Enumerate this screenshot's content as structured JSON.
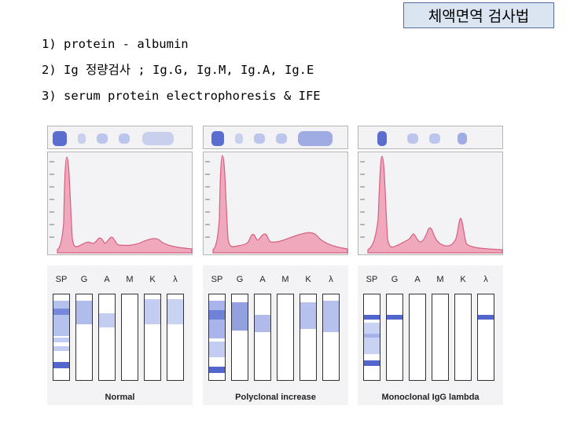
{
  "title": "체액면역 검사법",
  "bullets": [
    "1) protein - albumin",
    "2) Ig 정량검사 ; Ig.G, Ig.M, Ig.A, Ig.E",
    "3) serum protein electrophoresis  & IFE"
  ],
  "lane_labels": [
    "SP",
    "G",
    "A",
    "M",
    "K",
    "λ"
  ],
  "panels": [
    {
      "caption": "Normal"
    },
    {
      "caption": "Polyclonal increase"
    },
    {
      "caption": "Monoclonal IgG lambda"
    }
  ],
  "colors": {
    "peak_fill": "#f0a8bc",
    "peak_stroke": "#d6607f",
    "band": "#3f55c8",
    "title_bg": "#dbe5f1"
  }
}
